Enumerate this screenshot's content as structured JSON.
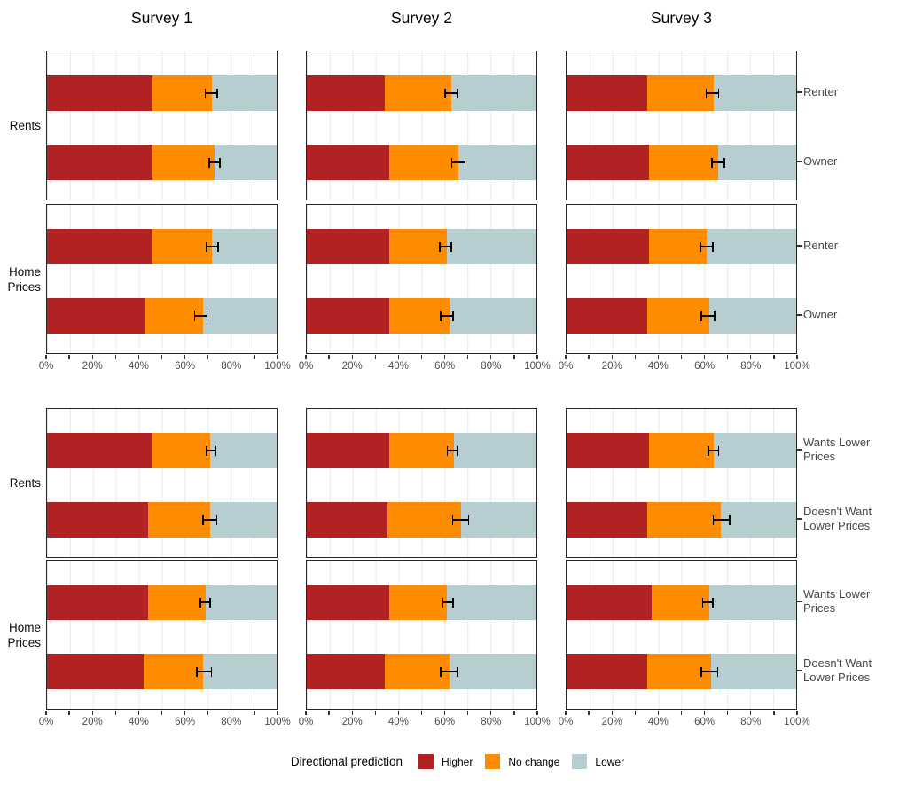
{
  "chart_data": {
    "type": "bar",
    "variant": "horizontal-stacked-100-faceted",
    "unit": "%",
    "columns": [
      "Survey 1",
      "Survey 2",
      "Survey 3"
    ],
    "x_axis": {
      "range": [
        0,
        100
      ],
      "tick_labels": [
        "0%",
        "20%",
        "40%",
        "60%",
        "80%",
        "100%"
      ],
      "minor_tick_step": 10,
      "grid": true
    },
    "series_order": [
      "Higher",
      "No change",
      "Lower"
    ],
    "legend": {
      "title": "Directional prediction",
      "position": "bottom",
      "entries": [
        {
          "label": "Higher",
          "color": "#b22222"
        },
        {
          "label": "No change",
          "color": "#ff8c00"
        },
        {
          "label": "Lower",
          "color": "#b6cdd1"
        }
      ]
    },
    "blocks": [
      {
        "name": "by-tenure",
        "row_groups": [
          {
            "label_lines": [
              "Rents"
            ],
            "panels": [
              {
                "column": "Survey 1",
                "bars": [
                  {
                    "label_lines": [
                      "Renter"
                    ],
                    "values": {
                      "Higher": 46,
                      "No change": 26,
                      "Lower": 28
                    },
                    "error": {
                      "center": 71.5,
                      "half_width": 2.9
                    }
                  },
                  {
                    "label_lines": [
                      "Owner"
                    ],
                    "values": {
                      "Higher": 46,
                      "No change": 27,
                      "Lower": 27
                    },
                    "error": {
                      "center": 73,
                      "half_width": 2.7
                    }
                  }
                ]
              },
              {
                "column": "Survey 2",
                "bars": [
                  {
                    "label_lines": [
                      "Renter"
                    ],
                    "values": {
                      "Higher": 34,
                      "No change": 29,
                      "Lower": 37
                    },
                    "error": {
                      "center": 63,
                      "half_width": 3.0
                    }
                  },
                  {
                    "label_lines": [
                      "Owner"
                    ],
                    "values": {
                      "Higher": 36,
                      "No change": 30,
                      "Lower": 34
                    },
                    "error": {
                      "center": 66,
                      "half_width": 3.2
                    }
                  }
                ]
              },
              {
                "column": "Survey 3",
                "bars": [
                  {
                    "label_lines": [
                      "Renter"
                    ],
                    "values": {
                      "Higher": 35,
                      "No change": 29,
                      "Lower": 36
                    },
                    "error": {
                      "center": 63.5,
                      "half_width": 3.0
                    }
                  },
                  {
                    "label_lines": [
                      "Owner"
                    ],
                    "values": {
                      "Higher": 36,
                      "No change": 30,
                      "Lower": 34
                    },
                    "error": {
                      "center": 66,
                      "half_width": 3.0
                    }
                  }
                ]
              }
            ]
          },
          {
            "label_lines": [
              "Home",
              "Prices"
            ],
            "panels": [
              {
                "column": "Survey 1",
                "bars": [
                  {
                    "label_lines": [
                      "Renter"
                    ],
                    "values": {
                      "Higher": 46,
                      "No change": 26,
                      "Lower": 28
                    },
                    "error": {
                      "center": 72,
                      "half_width": 2.8
                    }
                  },
                  {
                    "label_lines": [
                      "Owner"
                    ],
                    "values": {
                      "Higher": 43,
                      "No change": 25,
                      "Lower": 32
                    },
                    "error": {
                      "center": 67,
                      "half_width": 3.0
                    }
                  }
                ]
              },
              {
                "column": "Survey 2",
                "bars": [
                  {
                    "label_lines": [
                      "Renter"
                    ],
                    "values": {
                      "Higher": 36,
                      "No change": 25,
                      "Lower": 39
                    },
                    "error": {
                      "center": 60.5,
                      "half_width": 2.8
                    }
                  },
                  {
                    "label_lines": [
                      "Owner"
                    ],
                    "values": {
                      "Higher": 36,
                      "No change": 26,
                      "Lower": 38
                    },
                    "error": {
                      "center": 61,
                      "half_width": 3.1
                    }
                  }
                ]
              },
              {
                "column": "Survey 3",
                "bars": [
                  {
                    "label_lines": [
                      "Renter"
                    ],
                    "values": {
                      "Higher": 36,
                      "No change": 25,
                      "Lower": 39
                    },
                    "error": {
                      "center": 61,
                      "half_width": 3.1
                    }
                  },
                  {
                    "label_lines": [
                      "Owner"
                    ],
                    "values": {
                      "Higher": 35,
                      "No change": 27,
                      "Lower": 38
                    },
                    "error": {
                      "center": 61.5,
                      "half_width": 3.2
                    }
                  }
                ]
              }
            ]
          }
        ]
      },
      {
        "name": "by-price-preference",
        "row_groups": [
          {
            "label_lines": [
              "Rents"
            ],
            "panels": [
              {
                "column": "Survey 1",
                "bars": [
                  {
                    "label_lines": [
                      "Wants Lower",
                      "Prices"
                    ],
                    "values": {
                      "Higher": 46,
                      "No change": 25,
                      "Lower": 29
                    },
                    "error": {
                      "center": 71.5,
                      "half_width": 2.3
                    }
                  },
                  {
                    "label_lines": [
                      "Doesn't Want",
                      "Lower Prices"
                    ],
                    "values": {
                      "Higher": 44,
                      "No change": 27,
                      "Lower": 29
                    },
                    "error": {
                      "center": 71,
                      "half_width": 3.3
                    }
                  }
                ]
              },
              {
                "column": "Survey 2",
                "bars": [
                  {
                    "label_lines": [
                      "Wants Lower",
                      "Prices"
                    ],
                    "values": {
                      "Higher": 36,
                      "No change": 28,
                      "Lower": 36
                    },
                    "error": {
                      "center": 63.5,
                      "half_width": 2.6
                    }
                  },
                  {
                    "label_lines": [
                      "Doesn't Want",
                      "Lower Prices"
                    ],
                    "values": {
                      "Higher": 35,
                      "No change": 32,
                      "Lower": 33
                    },
                    "error": {
                      "center": 67,
                      "half_width": 3.8
                    }
                  }
                ]
              },
              {
                "column": "Survey 3",
                "bars": [
                  {
                    "label_lines": [
                      "Wants Lower",
                      "Prices"
                    ],
                    "values": {
                      "Higher": 36,
                      "No change": 28,
                      "Lower": 36
                    },
                    "error": {
                      "center": 64,
                      "half_width": 2.6
                    }
                  },
                  {
                    "label_lines": [
                      "Doesn't Want",
                      "Lower Prices"
                    ],
                    "values": {
                      "Higher": 35,
                      "No change": 32,
                      "Lower": 33
                    },
                    "error": {
                      "center": 67.5,
                      "half_width": 3.9
                    }
                  }
                ]
              }
            ]
          },
          {
            "label_lines": [
              "Home",
              "Prices"
            ],
            "panels": [
              {
                "column": "Survey 1",
                "bars": [
                  {
                    "label_lines": [
                      "Wants Lower",
                      "Prices"
                    ],
                    "values": {
                      "Higher": 44,
                      "No change": 25,
                      "Lower": 31
                    },
                    "error": {
                      "center": 69,
                      "half_width": 2.4
                    }
                  },
                  {
                    "label_lines": [
                      "Doesn't Want",
                      "Lower Prices"
                    ],
                    "values": {
                      "Higher": 42,
                      "No change": 26,
                      "Lower": 32
                    },
                    "error": {
                      "center": 68.5,
                      "half_width": 3.5
                    }
                  }
                ]
              },
              {
                "column": "Survey 2",
                "bars": [
                  {
                    "label_lines": [
                      "Wants Lower",
                      "Prices"
                    ],
                    "values": {
                      "Higher": 36,
                      "No change": 25,
                      "Lower": 39
                    },
                    "error": {
                      "center": 61.5,
                      "half_width": 2.6
                    }
                  },
                  {
                    "label_lines": [
                      "Doesn't Want",
                      "Lower Prices"
                    ],
                    "values": {
                      "Higher": 34,
                      "No change": 28,
                      "Lower": 38
                    },
                    "error": {
                      "center": 62,
                      "half_width": 3.9
                    }
                  }
                ]
              },
              {
                "column": "Survey 3",
                "bars": [
                  {
                    "label_lines": [
                      "Wants Lower",
                      "Prices"
                    ],
                    "values": {
                      "Higher": 37,
                      "No change": 25,
                      "Lower": 38
                    },
                    "error": {
                      "center": 61.5,
                      "half_width": 2.5
                    }
                  },
                  {
                    "label_lines": [
                      "Doesn't Want",
                      "Lower Prices"
                    ],
                    "values": {
                      "Higher": 35,
                      "No change": 28,
                      "Lower": 37
                    },
                    "error": {
                      "center": 62.3,
                      "half_width": 3.9
                    }
                  }
                ]
              }
            ]
          }
        ]
      }
    ]
  }
}
